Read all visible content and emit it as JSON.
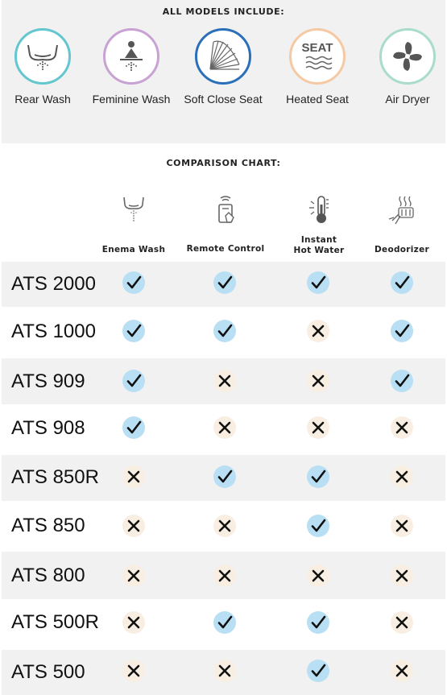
{
  "all_models": {
    "heading": "ALL MODELS INCLUDE:",
    "features": [
      {
        "label": "Rear Wash",
        "icon": "rear-wash-icon",
        "color": "#64c6cf"
      },
      {
        "label": "Feminine Wash",
        "icon": "feminine-wash-icon",
        "color": "#c9a2d4"
      },
      {
        "label": "Soft Close Seat",
        "icon": "soft-close-seat-icon",
        "color": "#2a6fb8"
      },
      {
        "label": "Heated Seat",
        "icon": "heated-seat-icon",
        "icon_text": "SEAT",
        "color": "#f5c9a3"
      },
      {
        "label": "Air Dryer",
        "icon": "air-dryer-icon",
        "color": "#a9dcc9"
      }
    ]
  },
  "comparison": {
    "heading": "COMPARISON CHART:",
    "columns": [
      {
        "label": "Enema Wash",
        "icon": "enema-wash-icon"
      },
      {
        "label": "Remote Control",
        "icon": "remote-control-icon"
      },
      {
        "label": "Instant\nHot Water",
        "icon": "thermometer-icon"
      },
      {
        "label": "Deodorizer",
        "icon": "deodorizer-icon"
      }
    ],
    "rows": [
      {
        "model": "ATS 2000",
        "values": [
          true,
          true,
          true,
          true
        ]
      },
      {
        "model": "ATS 1000",
        "values": [
          true,
          true,
          false,
          true
        ]
      },
      {
        "model": "ATS 909",
        "values": [
          true,
          false,
          false,
          true
        ]
      },
      {
        "model": "ATS 908",
        "values": [
          true,
          false,
          false,
          false
        ]
      },
      {
        "model": "ATS 850R",
        "values": [
          false,
          true,
          true,
          false
        ]
      },
      {
        "model": "ATS 850",
        "values": [
          false,
          false,
          true,
          false
        ]
      },
      {
        "model": "ATS 800",
        "values": [
          false,
          false,
          false,
          false
        ]
      },
      {
        "model": "ATS 500R",
        "values": [
          false,
          true,
          true,
          false
        ]
      },
      {
        "model": "ATS 500",
        "values": [
          false,
          false,
          true,
          false
        ]
      }
    ],
    "colors": {
      "yes_bg": "#b8dff3",
      "no_bg": "#f8eee2",
      "row_shade": "#f1f1f2"
    }
  }
}
